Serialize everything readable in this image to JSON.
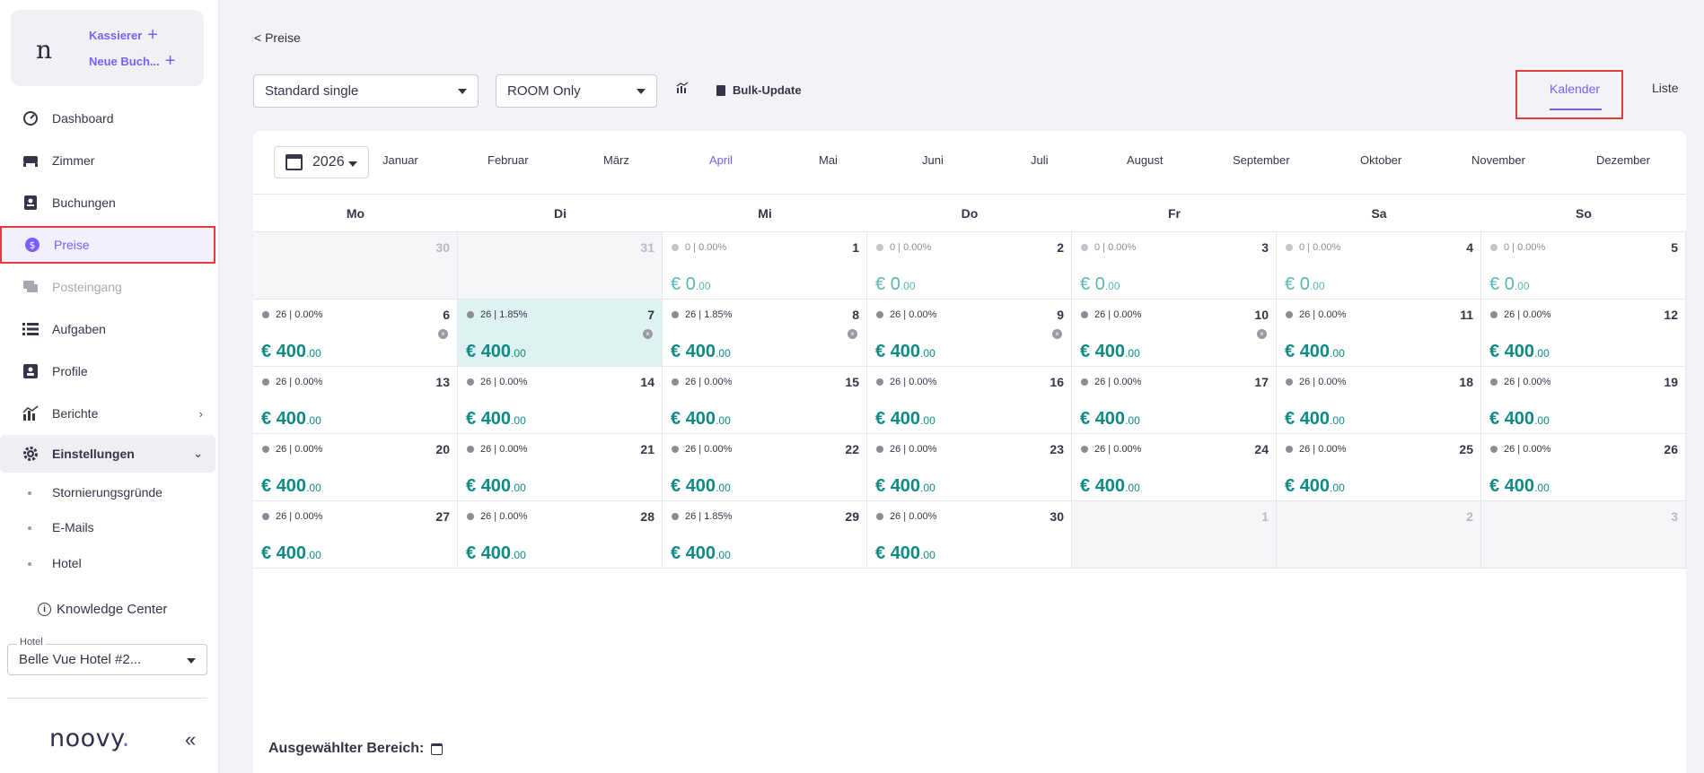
{
  "sidebar": {
    "brand_mark": "n",
    "quick_actions": {
      "cashier": "Kassierer",
      "new_booking": "Neue Buch..."
    },
    "nav": [
      {
        "label": "Dashboard",
        "icon": "gauge-icon"
      },
      {
        "label": "Zimmer",
        "icon": "bed-icon"
      },
      {
        "label": "Buchungen",
        "icon": "booking-icon"
      },
      {
        "label": "Preise",
        "icon": "dollar-icon",
        "active": true
      },
      {
        "label": "Posteingang",
        "icon": "chat-icon",
        "disabled": true
      },
      {
        "label": "Aufgaben",
        "icon": "list-icon"
      },
      {
        "label": "Profile",
        "icon": "profile-icon"
      },
      {
        "label": "Berichte",
        "icon": "chart-icon"
      },
      {
        "label": "Einstellungen",
        "icon": "gear-icon"
      }
    ],
    "settings_sub": [
      "Stornierungsgründe",
      "E-Mails",
      "Hotel"
    ],
    "knowledge_center": "Knowledge Center",
    "hotel_select": {
      "legend": "Hotel",
      "value": "Belle Vue Hotel #2..."
    },
    "logo": {
      "text": "noovy",
      "dot": "."
    }
  },
  "main": {
    "back_link": "< Preise",
    "room_type": "Standard single",
    "rate_plan": "ROOM Only",
    "bulk_update": "Bulk-Update",
    "views": {
      "calendar": "Kalender",
      "list": "Liste"
    },
    "year": "2026",
    "months": [
      "Januar",
      "Februar",
      "März",
      "April",
      "Mai",
      "Juni",
      "Juli",
      "August",
      "September",
      "Oktober",
      "November",
      "Dezember"
    ],
    "active_month": "April",
    "weekdays": [
      "Mo",
      "Di",
      "Mi",
      "Do",
      "Fr",
      "Sa",
      "So"
    ],
    "selected_range_label": "Ausgewählter Bereich:"
  },
  "calendar": {
    "currency": "€",
    "weeks": [
      [
        {
          "day": "30",
          "out": true
        },
        {
          "day": "31",
          "out": true
        },
        {
          "day": "1",
          "occ": "0 | 0.00%",
          "price": "0",
          "cents": ".00",
          "zero": true
        },
        {
          "day": "2",
          "occ": "0 | 0.00%",
          "price": "0",
          "cents": ".00",
          "zero": true
        },
        {
          "day": "3",
          "occ": "0 | 0.00%",
          "price": "0",
          "cents": ".00",
          "zero": true
        },
        {
          "day": "4",
          "occ": "0 | 0.00%",
          "price": "0",
          "cents": ".00",
          "zero": true
        },
        {
          "day": "5",
          "occ": "0 | 0.00%",
          "price": "0",
          "cents": ".00",
          "zero": true
        }
      ],
      [
        {
          "day": "6",
          "occ": "26 | 0.00%",
          "price": "400",
          "cents": ".00",
          "x": true
        },
        {
          "day": "7",
          "occ": "26 | 1.85%",
          "price": "400",
          "cents": ".00",
          "x": true,
          "selected": true
        },
        {
          "day": "8",
          "occ": "26 | 1.85%",
          "price": "400",
          "cents": ".00",
          "x": true
        },
        {
          "day": "9",
          "occ": "26 | 0.00%",
          "price": "400",
          "cents": ".00",
          "x": true
        },
        {
          "day": "10",
          "occ": "26 | 0.00%",
          "price": "400",
          "cents": ".00",
          "x": true
        },
        {
          "day": "11",
          "occ": "26 | 0.00%",
          "price": "400",
          "cents": ".00"
        },
        {
          "day": "12",
          "occ": "26 | 0.00%",
          "price": "400",
          "cents": ".00"
        }
      ],
      [
        {
          "day": "13",
          "occ": "26 | 0.00%",
          "price": "400",
          "cents": ".00"
        },
        {
          "day": "14",
          "occ": "26 | 0.00%",
          "price": "400",
          "cents": ".00"
        },
        {
          "day": "15",
          "occ": "26 | 0.00%",
          "price": "400",
          "cents": ".00"
        },
        {
          "day": "16",
          "occ": "26 | 0.00%",
          "price": "400",
          "cents": ".00"
        },
        {
          "day": "17",
          "occ": "26 | 0.00%",
          "price": "400",
          "cents": ".00"
        },
        {
          "day": "18",
          "occ": "26 | 0.00%",
          "price": "400",
          "cents": ".00"
        },
        {
          "day": "19",
          "occ": "26 | 0.00%",
          "price": "400",
          "cents": ".00"
        }
      ],
      [
        {
          "day": "20",
          "occ": "26 | 0.00%",
          "price": "400",
          "cents": ".00"
        },
        {
          "day": "21",
          "occ": "26 | 0.00%",
          "price": "400",
          "cents": ".00"
        },
        {
          "day": "22",
          "occ": "26 | 0.00%",
          "price": "400",
          "cents": ".00"
        },
        {
          "day": "23",
          "occ": "26 | 0.00%",
          "price": "400",
          "cents": ".00"
        },
        {
          "day": "24",
          "occ": "26 | 0.00%",
          "price": "400",
          "cents": ".00"
        },
        {
          "day": "25",
          "occ": "26 | 0.00%",
          "price": "400",
          "cents": ".00"
        },
        {
          "day": "26",
          "occ": "26 | 0.00%",
          "price": "400",
          "cents": ".00"
        }
      ],
      [
        {
          "day": "27",
          "occ": "26 | 0.00%",
          "price": "400",
          "cents": ".00"
        },
        {
          "day": "28",
          "occ": "26 | 0.00%",
          "price": "400",
          "cents": ".00"
        },
        {
          "day": "29",
          "occ": "26 | 1.85%",
          "price": "400",
          "cents": ".00"
        },
        {
          "day": "30",
          "occ": "26 | 0.00%",
          "price": "400",
          "cents": ".00"
        },
        {
          "day": "1",
          "out": true
        },
        {
          "day": "2",
          "out": true
        },
        {
          "day": "3",
          "out": true
        }
      ]
    ]
  },
  "colors": {
    "accent": "#7b5cff",
    "price": "#0f8a85",
    "highlight_border": "#e23c3c",
    "selected_cell": "#dff2f2"
  }
}
